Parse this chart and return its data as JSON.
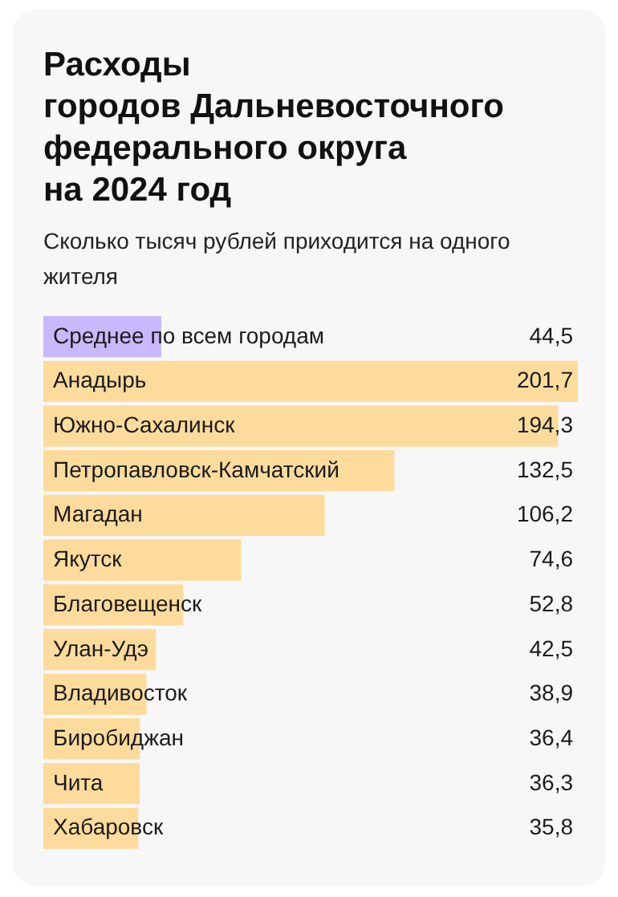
{
  "chart_data": {
    "type": "bar",
    "orientation": "horizontal",
    "title": "Расходы\nгородов Дальневосточного федерального округа\nна 2024 год",
    "subtitle": "Сколько тысяч рублей приходится на одного жителя",
    "categories": [
      "Среднее по всем городам",
      "Анадырь",
      "Южно-Сахалинск",
      "Петропавловск-Камчатский",
      "Магадан",
      "Якутск",
      "Благовещенск",
      "Улан-Удэ",
      "Владивосток",
      "Биробиджан",
      "Чита",
      "Хабаровск"
    ],
    "values": [
      44.5,
      201.7,
      194.3,
      132.5,
      106.2,
      74.6,
      52.8,
      42.5,
      38.9,
      36.4,
      36.3,
      35.8
    ],
    "value_labels": [
      "44,5",
      "201,7",
      "194,3",
      "132,5",
      "106,2",
      "74,6",
      "52,8",
      "42,5",
      "38,9",
      "36,4",
      "36,3",
      "35,8"
    ],
    "colors": [
      "#c8b8fc",
      "#fddb9c",
      "#fddb9c",
      "#fddb9c",
      "#fddb9c",
      "#fddb9c",
      "#fddb9c",
      "#fddb9c",
      "#fddb9c",
      "#fddb9c",
      "#fddb9c",
      "#fddb9c"
    ]
  }
}
